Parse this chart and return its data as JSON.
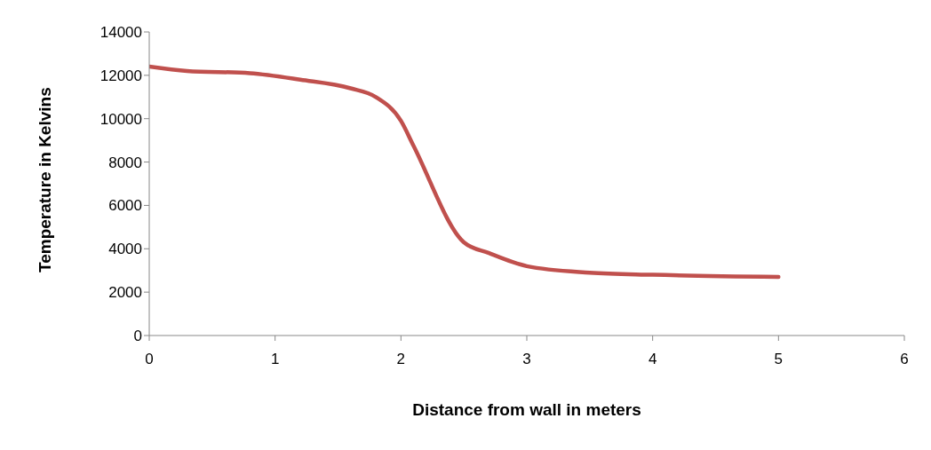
{
  "chart_data": {
    "type": "line",
    "xlabel": "Distance from wall in meters",
    "ylabel": "Temperature in Kelvins",
    "x": [
      0,
      0.3,
      0.8,
      1.2,
      1.6,
      1.8,
      2.0,
      2.1,
      2.5,
      2.7,
      3.0,
      3.5,
      4,
      5
    ],
    "series": [
      {
        "color": "#c0504d",
        "values": [
          12400,
          12200,
          12100,
          11800,
          11400,
          11000,
          9900,
          8750,
          4300,
          3800,
          3200,
          2900,
          2800,
          2700
        ]
      }
    ],
    "xlim": [
      0,
      6
    ],
    "xticks": [
      0,
      1,
      2,
      3,
      4,
      5,
      6
    ],
    "ylim": [
      0,
      14000
    ],
    "yticks": [
      0,
      2000,
      4000,
      6000,
      8000,
      10000,
      12000,
      14000
    ],
    "grid": false,
    "legend": false,
    "marker": "none",
    "line_style": "solid"
  }
}
